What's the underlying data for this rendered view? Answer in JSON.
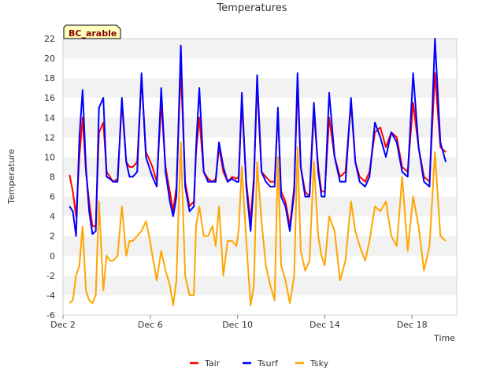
{
  "chart_data": {
    "type": "line",
    "title": "Temperatures",
    "site_label": "BC_arable",
    "xlabel": "Time",
    "ylabel": "Temperature",
    "ylim": [
      -6,
      22
    ],
    "yticks": [
      -6,
      -4,
      -2,
      0,
      2,
      4,
      6,
      8,
      10,
      12,
      14,
      16,
      18,
      20,
      22
    ],
    "xlim": [
      0,
      18.05
    ],
    "x_unit": "days since Dec 2",
    "xticks": [
      {
        "value": 0,
        "label": "Dec 2"
      },
      {
        "value": 4,
        "label": "Dec 6"
      },
      {
        "value": 8,
        "label": "Dec 10"
      },
      {
        "value": 12,
        "label": "Dec 14"
      },
      {
        "value": 16,
        "label": "Dec 18"
      }
    ],
    "grid": "horizontal-bands",
    "legend_position": "bottom",
    "series": [
      {
        "name": "Tair",
        "color": "#ff0000",
        "x": [
          0.3,
          0.45,
          0.6,
          0.75,
          0.9,
          1.05,
          1.2,
          1.35,
          1.5,
          1.65,
          1.85,
          2.0,
          2.15,
          2.3,
          2.5,
          2.7,
          2.9,
          3.05,
          3.2,
          3.4,
          3.6,
          3.8,
          3.95,
          4.1,
          4.3,
          4.5,
          4.7,
          4.9,
          5.05,
          5.2,
          5.4,
          5.6,
          5.8,
          6.0,
          6.1,
          6.25,
          6.45,
          6.65,
          6.85,
          7.0,
          7.15,
          7.35,
          7.55,
          7.75,
          7.95,
          8.05,
          8.2,
          8.4,
          8.6,
          8.75,
          8.9,
          9.1,
          9.3,
          9.5,
          9.7,
          9.85,
          10.0,
          10.2,
          10.4,
          10.6,
          10.75,
          10.9,
          11.1,
          11.3,
          11.5,
          11.7,
          11.85,
          12.0,
          12.2,
          12.45,
          12.7,
          12.95,
          13.2,
          13.4,
          13.6,
          13.85,
          14.05,
          14.3,
          14.55,
          14.8,
          15.05,
          15.3,
          15.55,
          15.8,
          16.05,
          16.3,
          16.55,
          16.8,
          17.05,
          17.3,
          17.55,
          17.8,
          18.0
        ],
        "y": [
          8.2,
          6.5,
          4.0,
          10.0,
          14.0,
          8.5,
          5.5,
          3.0,
          3.0,
          12.5,
          13.5,
          8.5,
          8.0,
          7.5,
          7.8,
          15.5,
          9.5,
          9.0,
          9.0,
          9.5,
          18.0,
          10.5,
          9.8,
          9.0,
          7.5,
          15.5,
          9.0,
          6.5,
          4.5,
          7.0,
          19.0,
          7.5,
          5.0,
          5.5,
          10.5,
          14.0,
          8.5,
          7.8,
          7.5,
          7.8,
          11.0,
          8.5,
          7.5,
          8.0,
          7.8,
          8.0,
          15.5,
          7.5,
          3.5,
          8.0,
          17.5,
          8.5,
          8.0,
          7.5,
          7.5,
          14.5,
          6.5,
          5.5,
          3.0,
          7.0,
          17.5,
          9.0,
          6.5,
          6.0,
          14.5,
          9.0,
          6.5,
          6.5,
          14.0,
          10.0,
          8.0,
          8.5,
          15.5,
          9.5,
          8.0,
          7.5,
          8.5,
          12.5,
          13.0,
          11.0,
          12.5,
          12.0,
          9.0,
          8.5,
          15.5,
          11.0,
          8.0,
          7.5,
          18.5,
          11.0,
          10.5,
          null,
          null
        ]
      },
      {
        "name": "Tsurf",
        "color": "#0000ff",
        "x": [
          0.3,
          0.45,
          0.6,
          0.75,
          0.9,
          1.05,
          1.2,
          1.35,
          1.5,
          1.65,
          1.85,
          2.0,
          2.15,
          2.3,
          2.5,
          2.7,
          2.9,
          3.05,
          3.2,
          3.4,
          3.6,
          3.8,
          3.95,
          4.1,
          4.3,
          4.5,
          4.7,
          4.9,
          5.05,
          5.2,
          5.4,
          5.6,
          5.8,
          6.0,
          6.1,
          6.25,
          6.45,
          6.65,
          6.85,
          7.0,
          7.15,
          7.35,
          7.55,
          7.75,
          7.95,
          8.05,
          8.2,
          8.4,
          8.6,
          8.75,
          8.9,
          9.1,
          9.3,
          9.5,
          9.7,
          9.85,
          10.0,
          10.2,
          10.4,
          10.6,
          10.75,
          10.9,
          11.1,
          11.3,
          11.5,
          11.7,
          11.85,
          12.0,
          12.2,
          12.45,
          12.7,
          12.95,
          13.2,
          13.4,
          13.6,
          13.85,
          14.05,
          14.3,
          14.55,
          14.8,
          15.05,
          15.3,
          15.55,
          15.8,
          16.05,
          16.3,
          16.55,
          16.8,
          17.05,
          17.3,
          17.55,
          17.8,
          18.0
        ],
        "y": [
          5.0,
          4.5,
          2.0,
          12.0,
          16.8,
          9.0,
          4.5,
          2.2,
          2.5,
          15.0,
          16.0,
          8.0,
          7.8,
          7.5,
          7.5,
          16.0,
          9.5,
          8.0,
          8.0,
          8.5,
          18.5,
          10.0,
          9.0,
          8.0,
          7.0,
          17.0,
          8.5,
          5.5,
          4.0,
          6.0,
          21.3,
          7.0,
          4.5,
          5.0,
          11.0,
          17.0,
          8.5,
          7.5,
          7.5,
          7.5,
          11.5,
          9.0,
          7.5,
          7.8,
          7.5,
          7.5,
          16.5,
          7.0,
          2.5,
          7.5,
          18.3,
          8.5,
          7.5,
          7.0,
          7.0,
          15.0,
          6.0,
          5.0,
          2.5,
          6.5,
          18.5,
          9.0,
          6.0,
          6.0,
          15.5,
          8.5,
          6.0,
          6.0,
          16.5,
          10.0,
          7.5,
          7.5,
          16.0,
          9.5,
          7.5,
          7.0,
          8.0,
          13.5,
          12.0,
          10.0,
          12.5,
          11.5,
          8.5,
          8.0,
          18.5,
          11.0,
          7.5,
          7.0,
          22.0,
          11.5,
          9.5,
          null,
          null
        ]
      },
      {
        "name": "Tsky",
        "color": "#ffa500",
        "x": [
          0.3,
          0.45,
          0.6,
          0.75,
          0.9,
          1.05,
          1.2,
          1.35,
          1.5,
          1.65,
          1.85,
          2.0,
          2.15,
          2.3,
          2.5,
          2.7,
          2.9,
          3.05,
          3.2,
          3.4,
          3.6,
          3.8,
          3.95,
          4.1,
          4.3,
          4.5,
          4.7,
          4.9,
          5.05,
          5.2,
          5.4,
          5.6,
          5.8,
          6.0,
          6.1,
          6.25,
          6.45,
          6.65,
          6.85,
          7.0,
          7.15,
          7.35,
          7.55,
          7.75,
          7.95,
          8.05,
          8.2,
          8.4,
          8.6,
          8.75,
          8.9,
          9.1,
          9.3,
          9.5,
          9.7,
          9.85,
          10.0,
          10.2,
          10.4,
          10.6,
          10.75,
          10.9,
          11.1,
          11.3,
          11.5,
          11.7,
          11.85,
          12.0,
          12.2,
          12.45,
          12.7,
          12.95,
          13.2,
          13.4,
          13.6,
          13.85,
          14.05,
          14.3,
          14.55,
          14.8,
          15.05,
          15.3,
          15.55,
          15.8,
          16.05,
          16.3,
          16.55,
          16.8,
          17.05,
          17.3,
          17.55,
          17.8,
          18.0
        ],
        "y": [
          -4.8,
          -4.5,
          -2.0,
          -1.0,
          3.0,
          -3.5,
          -4.5,
          -4.8,
          -4.0,
          5.5,
          -3.5,
          0.0,
          -0.5,
          -0.5,
          0.0,
          5.0,
          0.0,
          1.5,
          1.5,
          2.0,
          2.5,
          3.5,
          2.0,
          0.0,
          -2.5,
          0.5,
          -1.5,
          -3.0,
          -5.0,
          -2.5,
          11.5,
          -2.0,
          -4.0,
          -4.0,
          3.0,
          5.0,
          2.0,
          2.0,
          3.0,
          1.0,
          5.0,
          -2.0,
          1.5,
          1.5,
          1.0,
          2.5,
          9.0,
          1.5,
          -5.0,
          -3.0,
          9.5,
          3.5,
          -1.0,
          -3.0,
          -4.5,
          10.0,
          -1.0,
          -2.5,
          -4.8,
          -2.0,
          11.0,
          0.5,
          -1.5,
          -0.5,
          9.5,
          2.0,
          0.0,
          -1.0,
          4.0,
          2.5,
          -2.5,
          -0.5,
          5.5,
          2.5,
          1.0,
          -0.5,
          1.5,
          5.0,
          4.5,
          5.5,
          2.0,
          1.0,
          8.0,
          0.5,
          6.0,
          3.0,
          -1.5,
          1.0,
          10.5,
          2.0,
          1.5,
          null,
          null
        ]
      }
    ]
  }
}
